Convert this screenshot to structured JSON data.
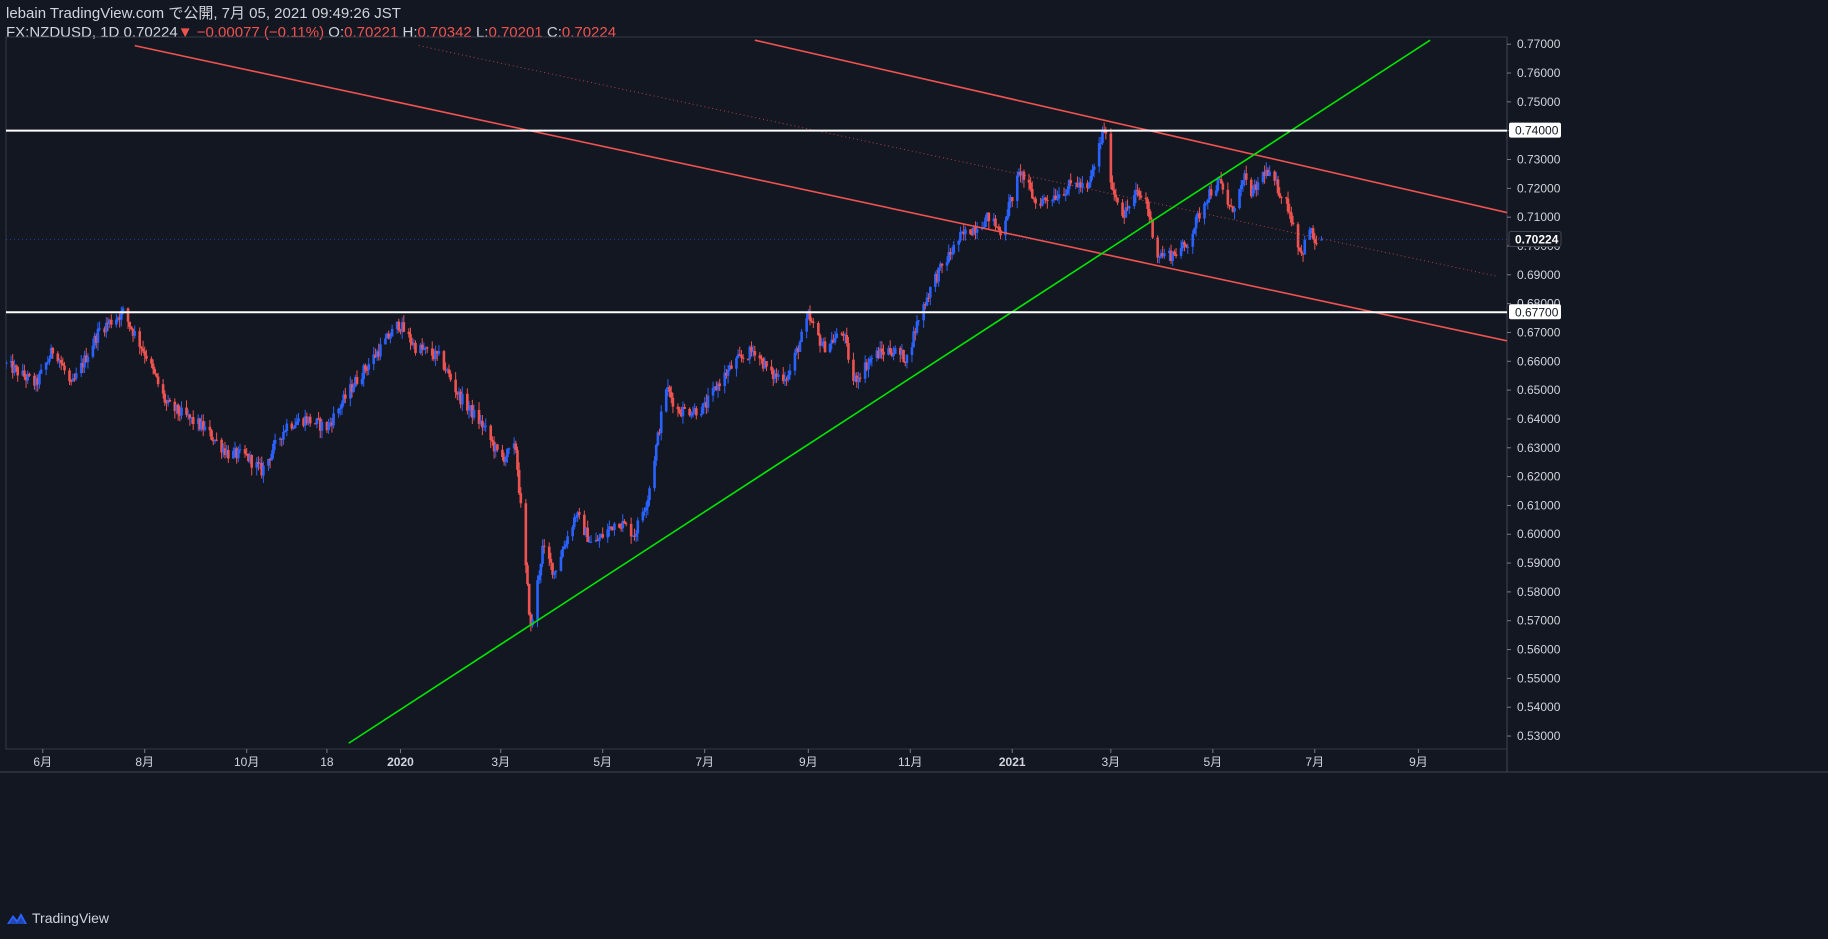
{
  "header": {
    "publisher": "lebain TradingView.com で公開, 7月 05, 2021 09:49:26 JST",
    "symbol": "FX:NZDUSD, 1D",
    "last": "0.70224",
    "change": "−0.00077 (−0.11%)",
    "o_label": "O:",
    "o_value": "0.70221",
    "h_label": "H:",
    "h_value": "0.70342",
    "l_label": "L:",
    "l_value": "0.70201",
    "c_label": "C:",
    "c_value": "0.70224"
  },
  "footer": {
    "brand": "TradingView"
  },
  "colors": {
    "background": "#131722",
    "up": "#2962ff",
    "down": "#ef5350",
    "trendline": "#ef5350",
    "support": "#00e600",
    "level": "#ffffff",
    "text": "#d1d4dc"
  },
  "chart_data": {
    "type": "candlestick",
    "symbol": "FX:NZDUSD",
    "timeframe": "1D",
    "x_ticks": [
      "6月",
      "8月",
      "10月",
      "18",
      "2020",
      "3月",
      "5月",
      "7月",
      "9月",
      "11月",
      "2021",
      "3月",
      "5月",
      "7月",
      "9月"
    ],
    "x_tick_dates": [
      "2019-06-01",
      "2019-08-01",
      "2019-10-01",
      "2019-11-18",
      "2020-01-01",
      "2020-03-01",
      "2020-05-01",
      "2020-07-01",
      "2020-09-01",
      "2020-11-01",
      "2021-01-01",
      "2021-03-01",
      "2021-05-01",
      "2021-07-01",
      "2021-09-01"
    ],
    "y_ticks": [
      "0.77000",
      "0.76000",
      "0.75000",
      "0.74000",
      "0.73000",
      "0.72000",
      "0.71000",
      "0.70000",
      "0.69000",
      "0.68000",
      "0.67000",
      "0.66000",
      "0.65000",
      "0.64000",
      "0.63000",
      "0.62000",
      "0.61000",
      "0.60000",
      "0.59000",
      "0.58000",
      "0.57000",
      "0.56000",
      "0.55000",
      "0.54000",
      "0.53000"
    ],
    "ylim": [
      0.5255,
      0.7725
    ],
    "xlim": [
      "2019-05-10",
      "2021-10-24"
    ],
    "price_path": [
      [
        "2019-05-10",
        0.659
      ],
      [
        "2019-05-28",
        0.652
      ],
      [
        "2019-06-08",
        0.665
      ],
      [
        "2019-06-18",
        0.651
      ],
      [
        "2019-07-05",
        0.671
      ],
      [
        "2019-07-19",
        0.677
      ],
      [
        "2019-08-02",
        0.662
      ],
      [
        "2019-08-14",
        0.645
      ],
      [
        "2019-09-05",
        0.637
      ],
      [
        "2019-09-20",
        0.628
      ],
      [
        "2019-10-01",
        0.627
      ],
      [
        "2019-10-10",
        0.622
      ],
      [
        "2019-10-25",
        0.638
      ],
      [
        "2019-11-05",
        0.64
      ],
      [
        "2019-11-18",
        0.637
      ],
      [
        "2019-12-05",
        0.653
      ],
      [
        "2019-12-31",
        0.673
      ],
      [
        "2020-01-10",
        0.665
      ],
      [
        "2020-01-25",
        0.661
      ],
      [
        "2020-02-05",
        0.648
      ],
      [
        "2020-02-20",
        0.637
      ],
      [
        "2020-03-01",
        0.626
      ],
      [
        "2020-03-10",
        0.63
      ],
      [
        "2020-03-19",
        0.567
      ],
      [
        "2020-03-26",
        0.595
      ],
      [
        "2020-04-02",
        0.587
      ],
      [
        "2020-04-15",
        0.607
      ],
      [
        "2020-04-25",
        0.596
      ],
      [
        "2020-05-10",
        0.605
      ],
      [
        "2020-05-20",
        0.6
      ],
      [
        "2020-05-28",
        0.613
      ],
      [
        "2020-06-08",
        0.651
      ],
      [
        "2020-06-15",
        0.643
      ],
      [
        "2020-06-25",
        0.643
      ],
      [
        "2020-07-01",
        0.644
      ],
      [
        "2020-07-10",
        0.653
      ],
      [
        "2020-07-20",
        0.66
      ],
      [
        "2020-07-31",
        0.664
      ],
      [
        "2020-08-10",
        0.655
      ],
      [
        "2020-08-20",
        0.655
      ],
      [
        "2020-09-01",
        0.675
      ],
      [
        "2020-09-10",
        0.665
      ],
      [
        "2020-09-22",
        0.67
      ],
      [
        "2020-09-28",
        0.653
      ],
      [
        "2020-10-10",
        0.662
      ],
      [
        "2020-10-20",
        0.664
      ],
      [
        "2020-10-30",
        0.661
      ],
      [
        "2020-11-06",
        0.675
      ],
      [
        "2020-11-15",
        0.688
      ],
      [
        "2020-12-01",
        0.703
      ],
      [
        "2020-12-18",
        0.71
      ],
      [
        "2020-12-25",
        0.705
      ],
      [
        "2021-01-06",
        0.726
      ],
      [
        "2021-01-15",
        0.715
      ],
      [
        "2021-01-28",
        0.718
      ],
      [
        "2021-02-08",
        0.722
      ],
      [
        "2021-02-15",
        0.719
      ],
      [
        "2021-02-25",
        0.741
      ],
      [
        "2021-03-02",
        0.72
      ],
      [
        "2021-03-09",
        0.711
      ],
      [
        "2021-03-16",
        0.718
      ],
      [
        "2021-03-22",
        0.716
      ],
      [
        "2021-03-29",
        0.697
      ],
      [
        "2021-04-06",
        0.697
      ],
      [
        "2021-04-15",
        0.7
      ],
      [
        "2021-04-28",
        0.718
      ],
      [
        "2021-05-05",
        0.722
      ],
      [
        "2021-05-12",
        0.712
      ],
      [
        "2021-05-20",
        0.723
      ],
      [
        "2021-05-25",
        0.718
      ],
      [
        "2021-06-01",
        0.726
      ],
      [
        "2021-06-08",
        0.721
      ],
      [
        "2021-06-15",
        0.714
      ],
      [
        "2021-06-23",
        0.697
      ],
      [
        "2021-06-28",
        0.706
      ],
      [
        "2021-07-02",
        0.7
      ],
      [
        "2021-07-05",
        0.70224
      ]
    ],
    "horizontal_levels": [
      {
        "price": 0.74,
        "label": "0.74000"
      },
      {
        "price": 0.677,
        "label": "0.67700"
      }
    ],
    "last_price_label": "0.70224",
    "trendlines": [
      {
        "name": "channel-upper",
        "from": [
          "2020-07-31",
          0.7714
        ],
        "to": [
          "2021-10-24",
          0.7116
        ]
      },
      {
        "name": "channel-lower",
        "from": [
          "2019-07-26",
          0.7695
        ],
        "to": [
          "2021-10-24",
          0.6671
        ]
      },
      {
        "name": "channel-mid",
        "from": [
          "2020-01-12",
          0.7695
        ],
        "to": [
          "2021-10-18",
          0.6895
        ],
        "style": "dotted"
      },
      {
        "name": "support",
        "from": [
          "2019-12-01",
          0.5275
        ],
        "to": [
          "2021-09-08",
          0.7714
        ]
      }
    ]
  }
}
